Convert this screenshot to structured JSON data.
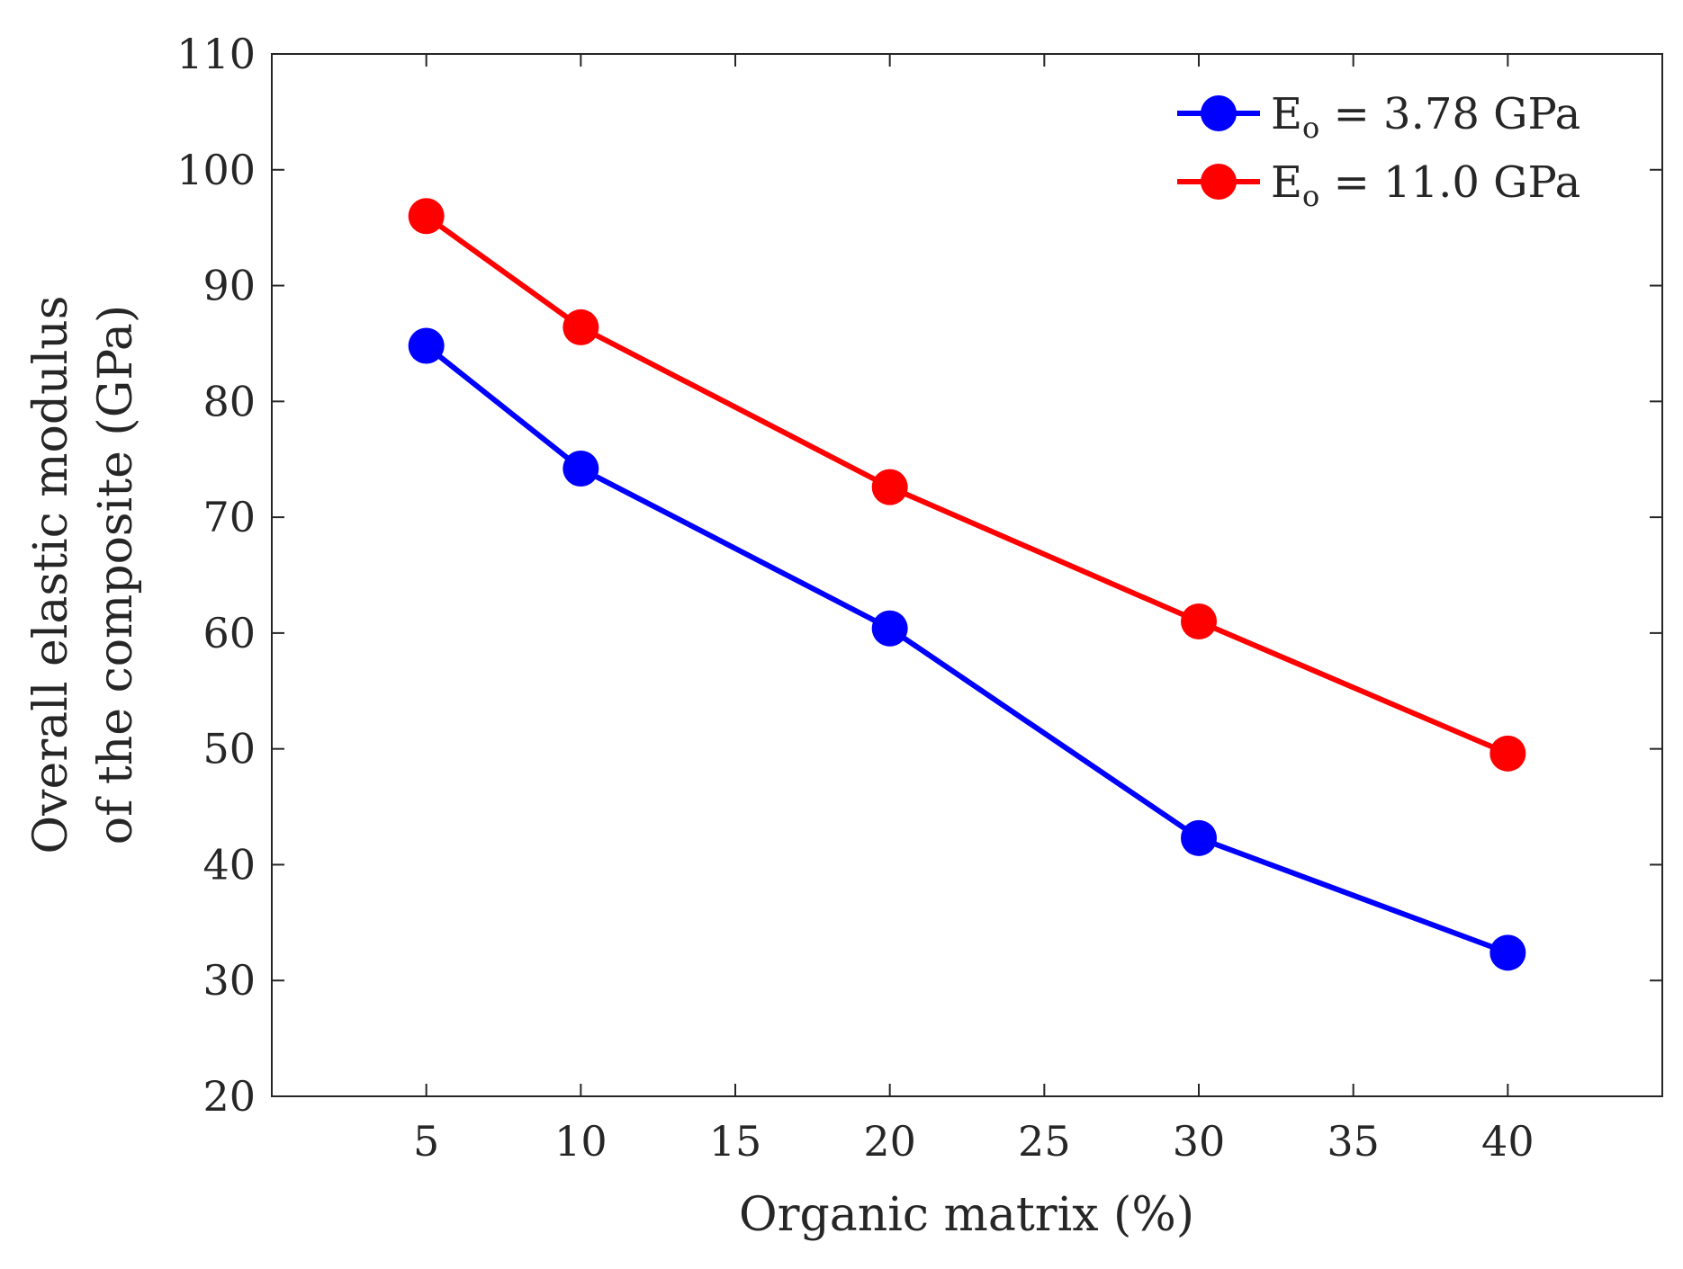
{
  "chart_data": {
    "type": "line",
    "title": "",
    "xlabel": "Organic matrix (%)",
    "ylabel_line1": "Overall elastic modulus",
    "ylabel_line2": "of the composite (GPa)",
    "xlim": [
      0,
      45
    ],
    "ylim": [
      20,
      110
    ],
    "xticks": [
      5,
      10,
      15,
      20,
      25,
      30,
      35,
      40
    ],
    "yticks": [
      20,
      30,
      40,
      50,
      60,
      70,
      80,
      90,
      100,
      110
    ],
    "grid": false,
    "legend_position": "top-right",
    "x": [
      5,
      10,
      20,
      30,
      40
    ],
    "series": [
      {
        "name": "Eo = 3.78 GPa",
        "legend_main": "E",
        "legend_sub": "o",
        "legend_rest": " = 3.78 GPa",
        "color": "#0000ff",
        "values": [
          84.8,
          74.2,
          60.4,
          42.3,
          32.4
        ]
      },
      {
        "name": "Eo = 11.0 GPa",
        "legend_main": "E",
        "legend_sub": "o",
        "legend_rest": " = 11.0 GPa",
        "color": "#ff0000",
        "values": [
          96.0,
          86.4,
          72.6,
          61.0,
          49.6
        ]
      }
    ]
  }
}
